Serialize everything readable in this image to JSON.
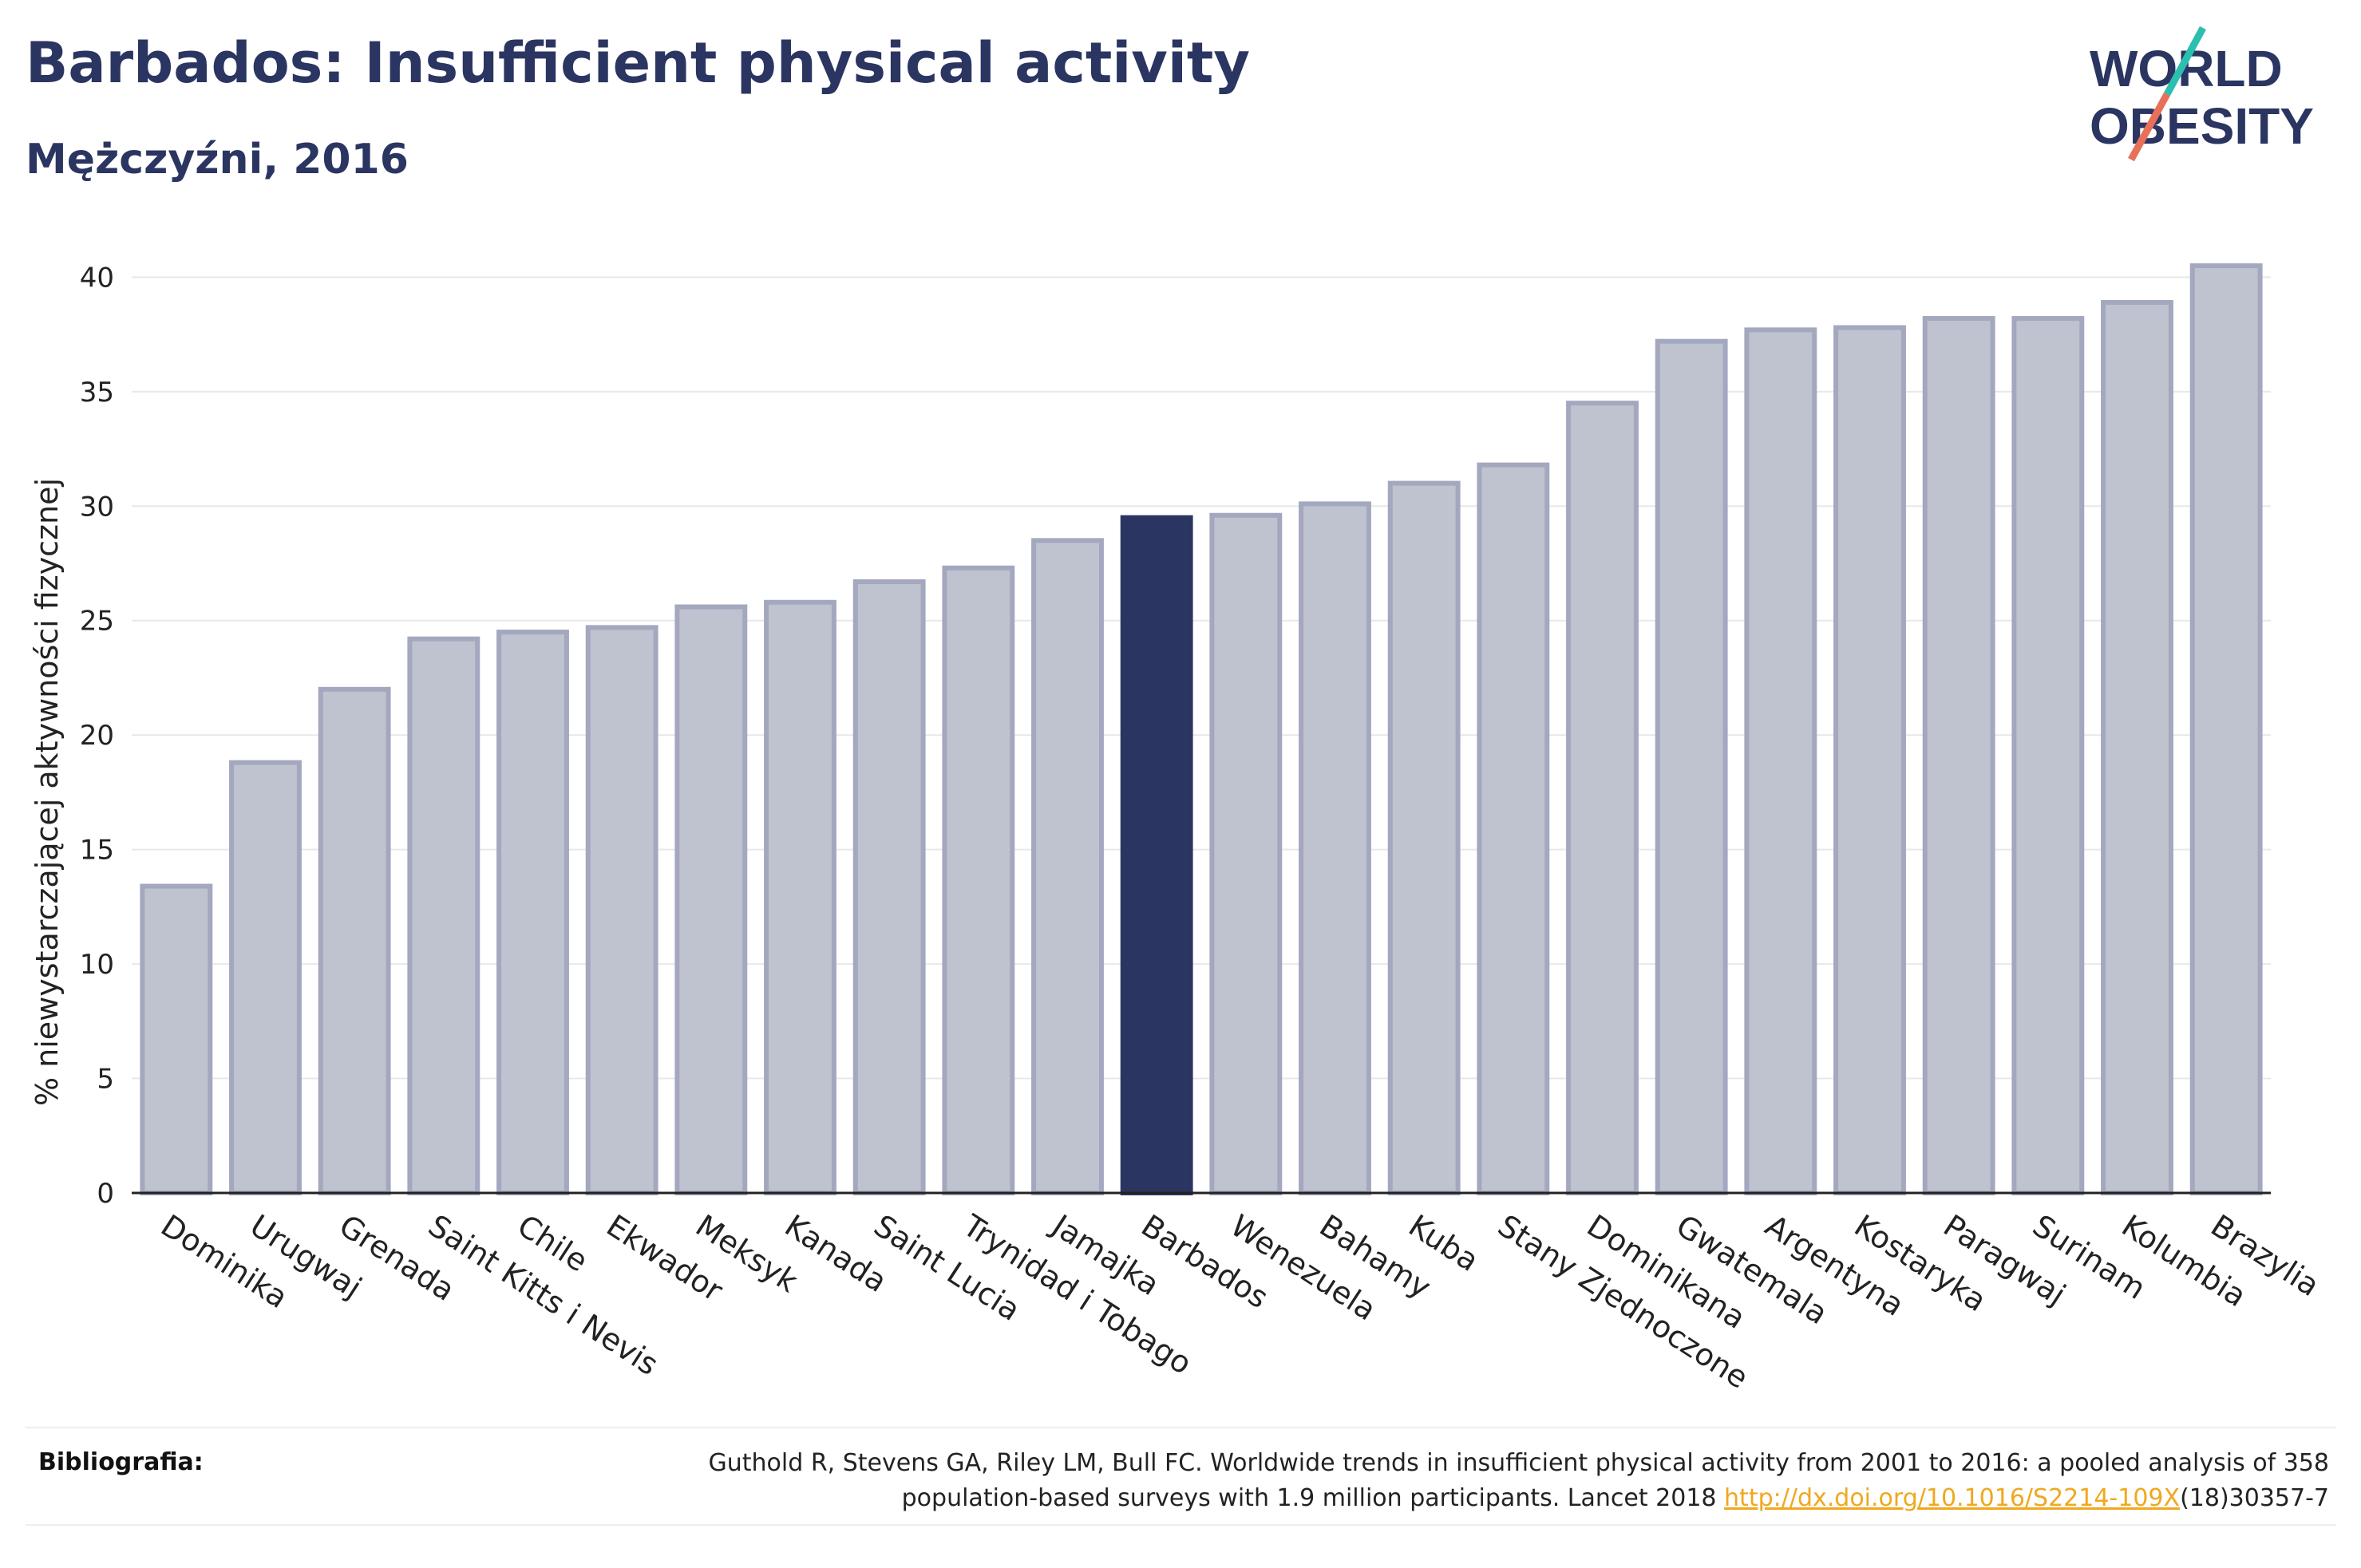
{
  "header": {
    "title": "Barbados: Insufficient physical activity",
    "subtitle": "Mężczyźni, 2016"
  },
  "logo": {
    "line1": "WORLD",
    "line2": "OBESITY",
    "slash_colors": [
      "#2bbfb0",
      "#e8705a"
    ]
  },
  "colors": {
    "highlight": "#2b3561",
    "bar_fill": "#bfc2cf",
    "bar_stroke": "#a3a8bf",
    "grid": "#e8e8e8",
    "text": "#2b3561"
  },
  "chart_data": {
    "type": "bar",
    "title": "Barbados: Insufficient physical activity",
    "subtitle": "Mężczyźni, 2016",
    "xlabel": "",
    "ylabel": "% niewystarczającej aktywności fizycznej",
    "ylim": [
      0,
      42
    ],
    "yticks": [
      0,
      5,
      10,
      15,
      20,
      25,
      30,
      35,
      40
    ],
    "highlight": "Barbados",
    "categories": [
      "Dominika",
      "Urugwaj",
      "Grenada",
      "Saint Kitts i Nevis",
      "Chile",
      "Ekwador",
      "Meksyk",
      "Kanada",
      "Saint Lucia",
      "Trynidad i Tobago",
      "Jamajka",
      "Barbados",
      "Wenezuela",
      "Bahamy",
      "Kuba",
      "Stany Zjednoczone",
      "Dominikana",
      "Gwatemala",
      "Argentyna",
      "Kostaryka",
      "Paragwaj",
      "Surinam",
      "Kolumbia",
      "Brazylia"
    ],
    "values": [
      13.4,
      18.8,
      22.0,
      24.2,
      24.5,
      24.7,
      25.6,
      25.8,
      26.7,
      27.3,
      28.5,
      29.5,
      29.6,
      30.1,
      31.0,
      31.8,
      34.5,
      37.2,
      37.7,
      37.8,
      38.2,
      38.2,
      38.9,
      40.5
    ],
    "grid": true,
    "legend": "none"
  },
  "footer": {
    "label": "Bibliografia:",
    "line1": "Guthold R, Stevens GA, Riley LM, Bull FC. Worldwide trends in insufficient physical activity from 2001 to 2016: a pooled analysis of 358",
    "line2_pre": "population-based surveys with 1.9 million participants. Lancet 2018 ",
    "link": "http://dx.doi.org/10.1016/S2214-109X",
    "line2_post": "(18)30357-7"
  }
}
